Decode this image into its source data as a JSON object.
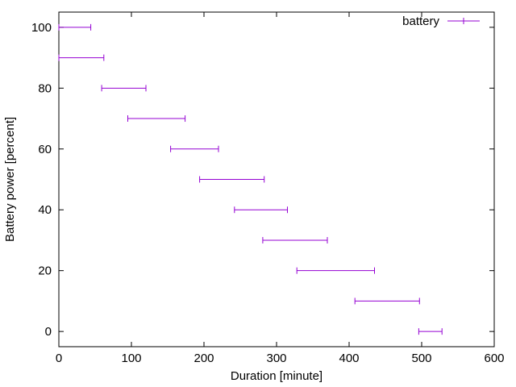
{
  "chart_data": {
    "type": "errorbar",
    "xlabel": "Duration [minute]",
    "ylabel": "Battery power [percent]",
    "xlim": [
      0,
      600
    ],
    "ylim": [
      -5,
      105
    ],
    "xticks": [
      0,
      100,
      200,
      300,
      400,
      500,
      600
    ],
    "yticks": [
      0,
      20,
      40,
      60,
      80,
      100
    ],
    "grid": false,
    "legend_position": "top-right",
    "series": [
      {
        "name": "battery",
        "color": "#9400d3",
        "points": [
          {
            "y": 100,
            "x_low": 0,
            "x_high": 44
          },
          {
            "y": 90,
            "x_low": 0,
            "x_high": 62
          },
          {
            "y": 80,
            "x_low": 59,
            "x_high": 120
          },
          {
            "y": 70,
            "x_low": 95,
            "x_high": 174
          },
          {
            "y": 60,
            "x_low": 154,
            "x_high": 220
          },
          {
            "y": 50,
            "x_low": 194,
            "x_high": 283
          },
          {
            "y": 40,
            "x_low": 242,
            "x_high": 315
          },
          {
            "y": 30,
            "x_low": 281,
            "x_high": 370
          },
          {
            "y": 20,
            "x_low": 328,
            "x_high": 435
          },
          {
            "y": 10,
            "x_low": 408,
            "x_high": 497
          },
          {
            "y": 0,
            "x_low": 496,
            "x_high": 528
          }
        ]
      }
    ]
  }
}
